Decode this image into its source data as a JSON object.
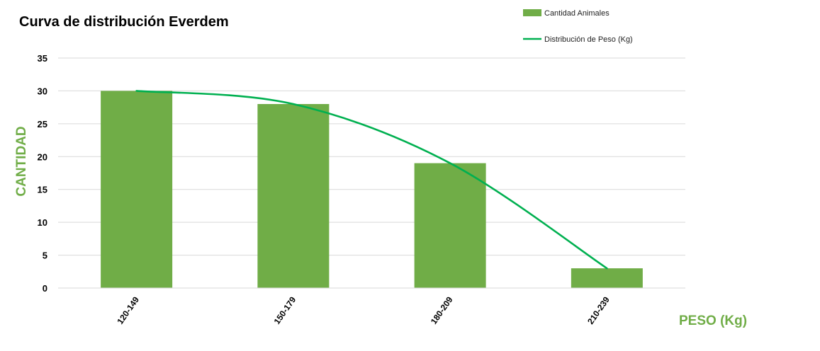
{
  "chart_data": {
    "type": "bar",
    "title": "Curva de distribución Everdem",
    "xlabel": "PESO (Kg)",
    "ylabel": "CANTIDAD",
    "categories": [
      "120-149",
      "150-179",
      "180-209",
      "210-239"
    ],
    "series": [
      {
        "name": "Cantidad Animales",
        "type": "bar",
        "values": [
          30,
          28,
          19,
          3
        ],
        "color": "#70ad47"
      },
      {
        "name": "Distribución de Peso (Kg)",
        "type": "line",
        "values": [
          30,
          28,
          19,
          3
        ],
        "color": "#00b050"
      }
    ],
    "ylim": [
      0,
      35
    ],
    "yticks": [
      0,
      5,
      10,
      15,
      20,
      25,
      30,
      35
    ],
    "grid": true,
    "legend": "top-right",
    "axis_title_color": "#70ad47"
  }
}
